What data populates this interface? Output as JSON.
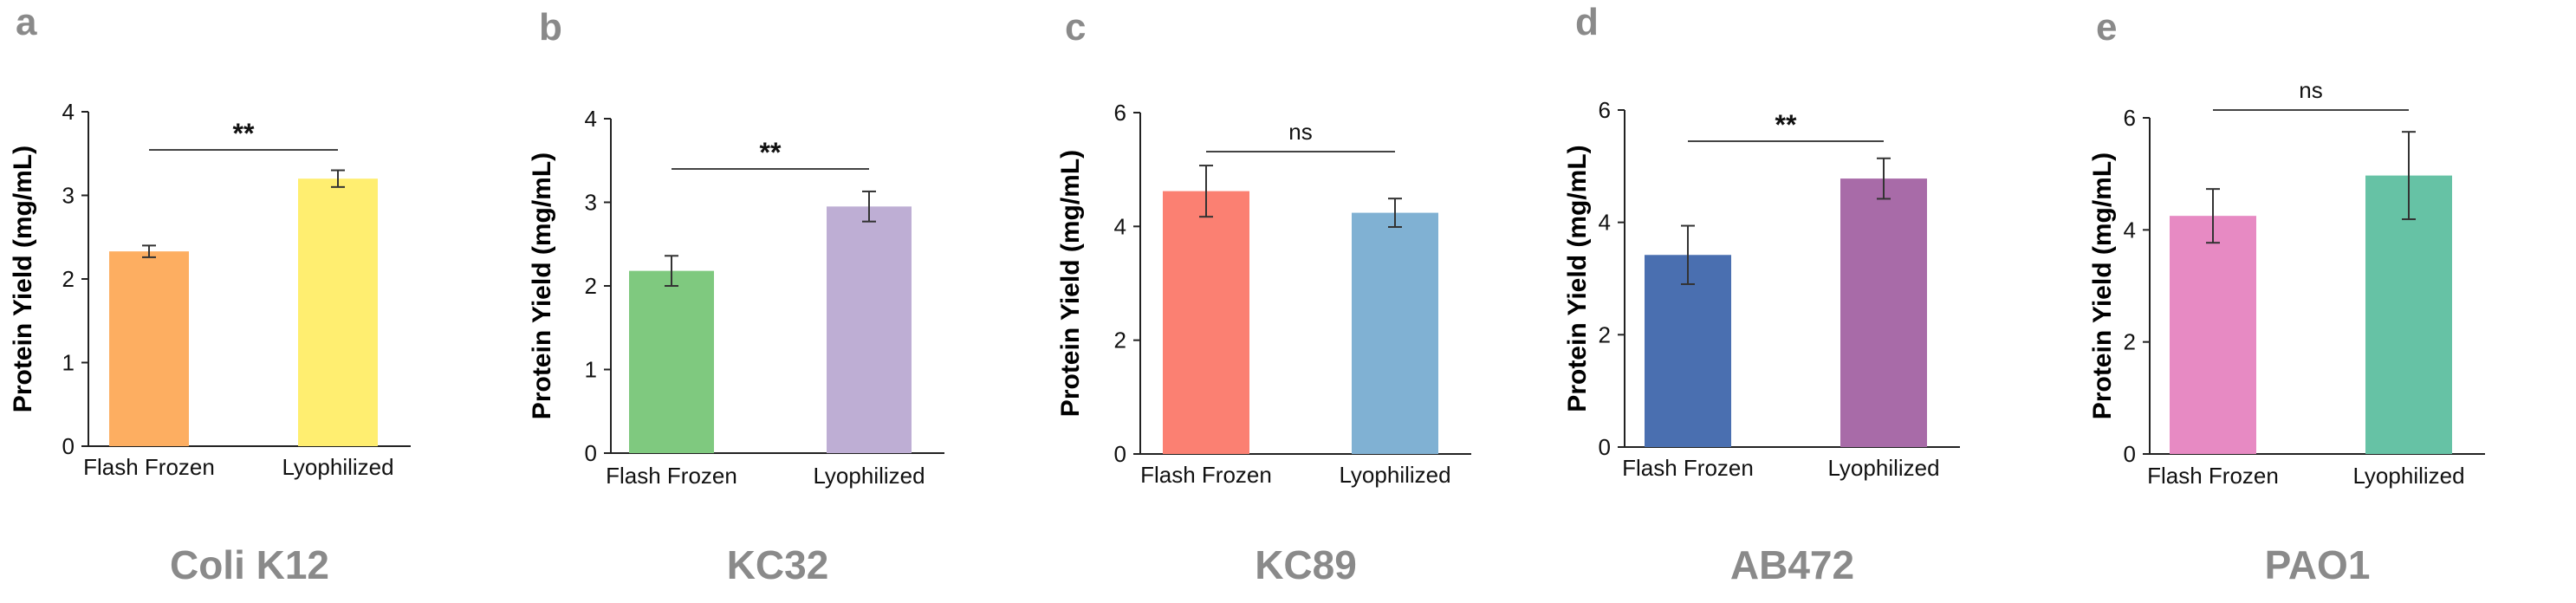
{
  "figure": {
    "colors": {
      "axis": "#222222",
      "panel_label": "#8a8a8a",
      "strain_title": "#8a8a8a",
      "error_bar": "#333333",
      "bracket": "#444444"
    }
  },
  "chart_data": [
    {
      "panel_label": "a",
      "strain": "Coli K12",
      "type": "bar",
      "categories": [
        "Flash Frozen",
        "Lyophilized"
      ],
      "values": [
        2.33,
        3.2
      ],
      "errors": [
        0.07,
        0.1
      ],
      "colors": [
        "#FDAE61",
        "#FFEE70"
      ],
      "ylabel": "Protein Yield (mg/mL)",
      "ylim": [
        0,
        4
      ],
      "yticks": [
        0,
        1,
        2,
        3,
        4
      ],
      "significance": "**",
      "grid": false
    },
    {
      "panel_label": "b",
      "strain": "KC32",
      "type": "bar",
      "categories": [
        "Flash Frozen",
        "Lyophilized"
      ],
      "values": [
        2.18,
        2.95
      ],
      "errors": [
        0.18,
        0.18
      ],
      "colors": [
        "#7FC97F",
        "#BEAED4"
      ],
      "ylabel": "Protein Yield (mg/mL)",
      "ylim": [
        0,
        4
      ],
      "yticks": [
        0,
        1,
        2,
        3,
        4
      ],
      "significance": "**",
      "grid": false
    },
    {
      "panel_label": "c",
      "strain": "KC89",
      "type": "bar",
      "categories": [
        "Flash Frozen",
        "Lyophilized"
      ],
      "values": [
        4.62,
        4.24
      ],
      "errors": [
        0.45,
        0.25
      ],
      "colors": [
        "#FB8072",
        "#80B1D3"
      ],
      "ylabel": "Protein Yield (mg/mL)",
      "ylim": [
        0,
        6
      ],
      "yticks": [
        0,
        2,
        4,
        6
      ],
      "significance": "ns",
      "grid": false
    },
    {
      "panel_label": "d",
      "strain": "AB472",
      "type": "bar",
      "categories": [
        "Flash Frozen",
        "Lyophilized"
      ],
      "values": [
        3.42,
        4.78
      ],
      "errors": [
        0.52,
        0.36
      ],
      "colors": [
        "#4A6FB0",
        "#A86BA8"
      ],
      "ylabel": "Protein Yield (mg/mL)",
      "ylim": [
        0,
        6
      ],
      "yticks": [
        0,
        2,
        4,
        6
      ],
      "significance": "**",
      "grid": false
    },
    {
      "panel_label": "e",
      "strain": "PAO1",
      "type": "bar",
      "categories": [
        "Flash Frozen",
        "Lyophilized"
      ],
      "values": [
        4.25,
        4.97
      ],
      "errors": [
        0.48,
        0.78
      ],
      "colors": [
        "#E78AC3",
        "#66C2A5"
      ],
      "ylabel": "Protein Yield (mg/mL)",
      "ylim": [
        0,
        6
      ],
      "yticks": [
        0,
        2,
        4,
        6
      ],
      "significance": "ns",
      "grid": false
    }
  ]
}
